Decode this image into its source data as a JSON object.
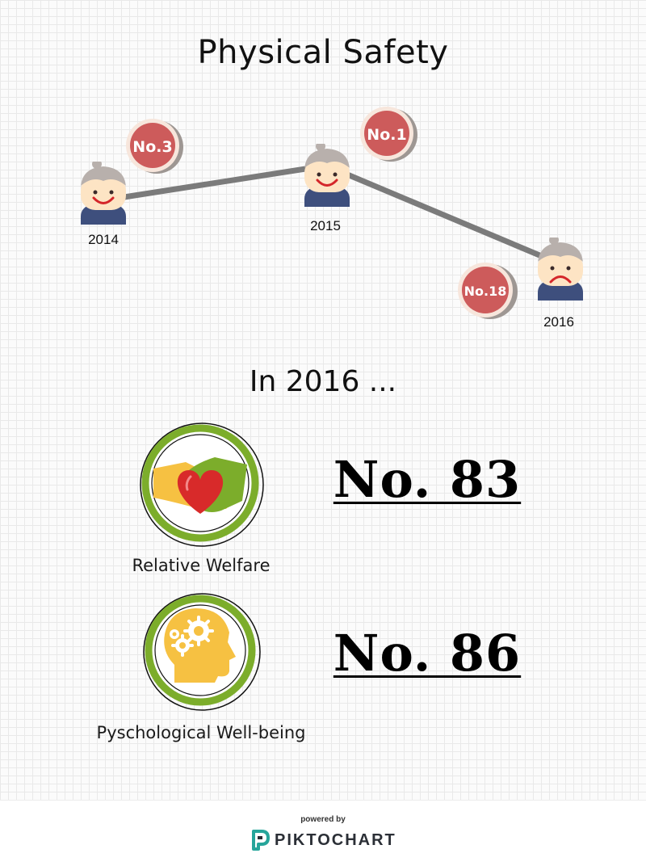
{
  "page": {
    "title": "Physical Safety",
    "section_heading": "In 2016 ..."
  },
  "timeline": [
    {
      "year": "2014",
      "rank": "No.3",
      "mood": "happy"
    },
    {
      "year": "2015",
      "rank": "No.1",
      "mood": "happy"
    },
    {
      "year": "2016",
      "rank": "No.18",
      "mood": "sad"
    }
  ],
  "metrics": [
    {
      "label": "Relative Welfare",
      "value": "No. 83",
      "icon": "handshake-heart-icon"
    },
    {
      "label": "Pyschological Well-being",
      "value": "No. 86",
      "icon": "head-gears-icon"
    }
  ],
  "footer": {
    "powered_by": "powered by",
    "brand": "PIKTOCHART"
  },
  "colors": {
    "badge": "#cd5b5b",
    "badge_ring": "#f7e6dc",
    "line": "#7b7b7b",
    "hair": "#b8b0ac",
    "skin": "#fde4c4",
    "shirt": "#3e4f7d",
    "icon_ring": "#7cad2b",
    "brand_teal": "#26a59a"
  }
}
